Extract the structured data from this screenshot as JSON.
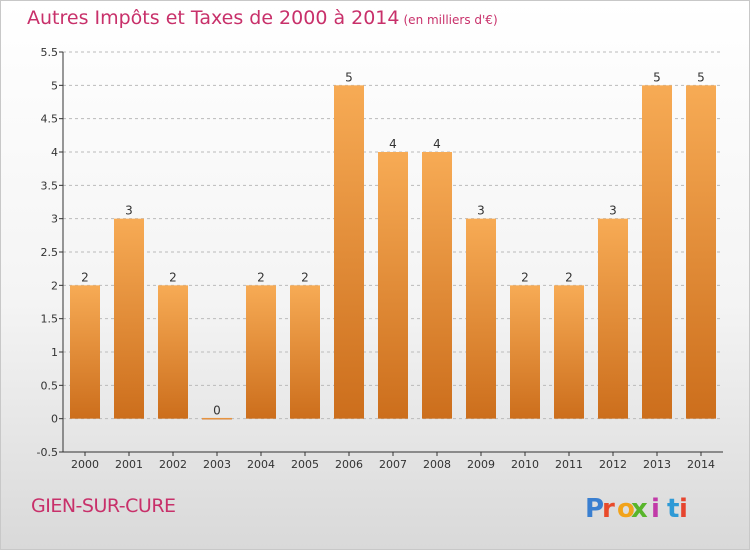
{
  "title": "Autres Impôts et Taxes de 2000 à 2014",
  "subtitle": "(en milliers d'€)",
  "commune": "GIEN-SUR-CURE",
  "logo": {
    "text": "Proxiti",
    "colors": [
      "#3a7fd0",
      "#e94a2a",
      "#f2a31a",
      "#58b52b",
      "#c13aa8",
      "#2f9ad6",
      "#e6452f"
    ]
  },
  "colors": {
    "bar_light": "#f7ab55",
    "bar_dark": "#cc6e1c",
    "title": "#c8306a",
    "axis": "#333333",
    "grid": "#bbbbbb"
  },
  "chart_data": {
    "type": "bar",
    "title": "Autres Impôts et Taxes de 2000 à 2014",
    "subtitle": "(en milliers d'€)",
    "xlabel": "",
    "ylabel": "",
    "categories": [
      "2000",
      "2001",
      "2002",
      "2003",
      "2004",
      "2005",
      "2006",
      "2007",
      "2008",
      "2009",
      "2010",
      "2011",
      "2012",
      "2013",
      "2014"
    ],
    "values": [
      2,
      3,
      2,
      0,
      2,
      2,
      5,
      4,
      4,
      3,
      2,
      2,
      3,
      5,
      5
    ],
    "value_labels": [
      "2",
      "3",
      "2",
      "0",
      "2",
      "2",
      "5",
      "4",
      "4",
      "3",
      "2",
      "2",
      "3",
      "5",
      "5"
    ],
    "ylim": [
      -0.5,
      5.5
    ],
    "yticks": [
      "-0.5",
      "0",
      "0.5",
      "1",
      "1.5",
      "2",
      "2.5",
      "3",
      "3.5",
      "4",
      "4.5",
      "5",
      "5.5"
    ],
    "grid": "horizontal dashed",
    "legend": "none"
  }
}
